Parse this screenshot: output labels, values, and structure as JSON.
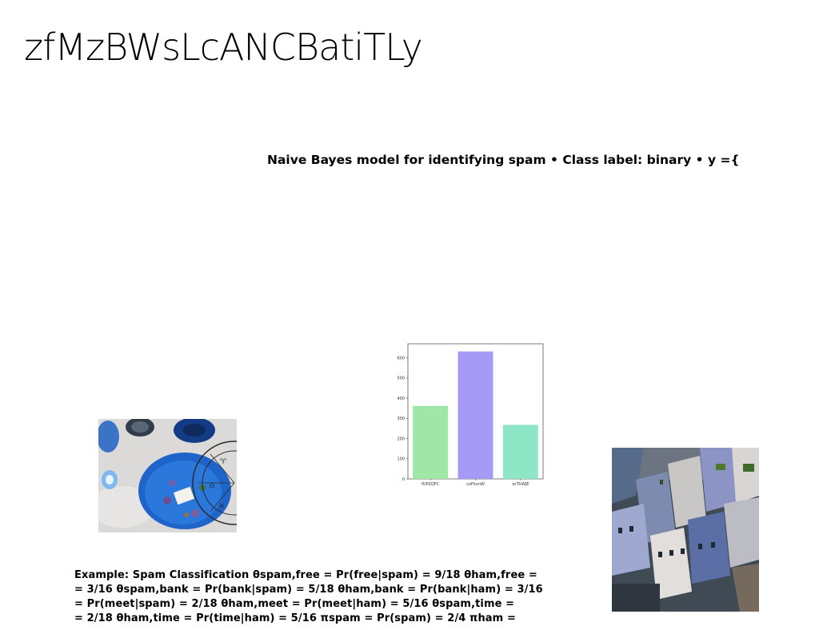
{
  "slide": {
    "title": "zfMzBWsLcANCBatiTLy",
    "subtitle": "Naive Bayes model for identifying spam • Class label: binary • y ={",
    "example_lines": [
      "Example: Spam Classification θspam,free = Pr(free|spam) = 9/18 θham,free =",
      "= 3/16 θspam,bank = Pr(bank|spam) = 5/18 θham,bank = Pr(bank|ham) = 3/16",
      "= Pr(meet|spam) = 2/18 θham,meet = Pr(meet|ham) = 5/16 θspam,time =",
      "= 2/18 θham,time = Pr(time|ham) = 5/16 πspam = Pr(spam) = 2/4 πham ="
    ]
  },
  "chart_data": {
    "type": "bar",
    "categories": [
      "fUPZQFC",
      "coFkxnW",
      "ocTkWjE"
    ],
    "values": [
      362,
      632,
      268
    ],
    "colors": [
      "#a0e6a6",
      "#a59af5",
      "#8ee6c6"
    ],
    "ylim": [
      0,
      670
    ],
    "yticks": [
      0,
      100,
      200,
      300,
      400,
      500,
      600
    ],
    "title": "",
    "xlabel": "",
    "ylabel": "",
    "grid": false
  }
}
